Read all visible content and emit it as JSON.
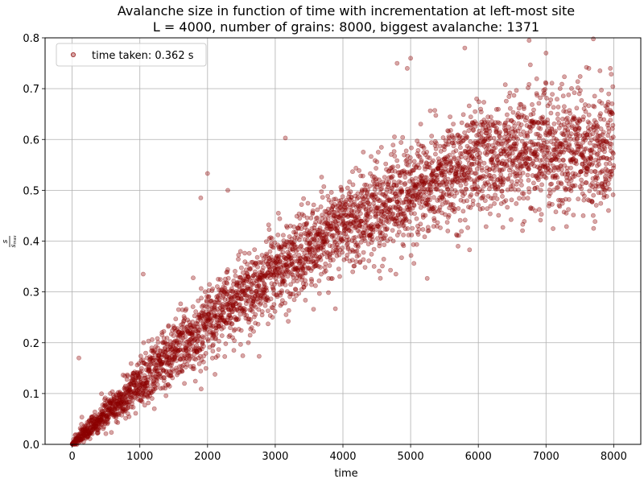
{
  "chart_data": {
    "type": "scatter",
    "title": "Avalanche size in function of time with incrementation at left-most site",
    "subtitle": "L = 4000, number of grains: 8000, biggest avalanche: 1371",
    "xlabel": "time",
    "ylabel": {
      "numerator": "s",
      "denominator": "s",
      "denominator_subscript": "max"
    },
    "xlim": [
      -400,
      8400
    ],
    "ylim": [
      0,
      0.8
    ],
    "xticks": [
      0,
      1000,
      2000,
      3000,
      4000,
      5000,
      6000,
      7000,
      8000
    ],
    "yticks": [
      0.0,
      0.1,
      0.2,
      0.3,
      0.4,
      0.5,
      0.6,
      0.7,
      0.8
    ],
    "grid": true,
    "legend_position": "top-left",
    "marker_color": "#8b0000",
    "marker_alpha": 0.35,
    "series": [
      {
        "name": "time taken: 0.362 s",
        "n_points": 8000,
        "x_range": [
          0,
          8000
        ],
        "trend": {
          "x": [
            0,
            1000,
            2000,
            3000,
            4000,
            5000,
            6000,
            7000,
            8000
          ],
          "y": [
            0.0,
            0.12,
            0.24,
            0.34,
            0.43,
            0.5,
            0.56,
            0.58,
            0.58
          ]
        },
        "spread": {
          "x": [
            0,
            1000,
            2000,
            3000,
            4000,
            5000,
            6000,
            7000,
            8000
          ],
          "y": [
            0.005,
            0.025,
            0.035,
            0.04,
            0.045,
            0.05,
            0.055,
            0.06,
            0.06
          ]
        },
        "outliers": [
          {
            "x": 100,
            "y": 0.17
          },
          {
            "x": 1050,
            "y": 0.335
          },
          {
            "x": 2000,
            "y": 0.533
          },
          {
            "x": 1900,
            "y": 0.485
          },
          {
            "x": 2300,
            "y": 0.5
          },
          {
            "x": 3150,
            "y": 0.603
          },
          {
            "x": 4800,
            "y": 0.75
          },
          {
            "x": 4950,
            "y": 0.74
          },
          {
            "x": 5000,
            "y": 0.76
          },
          {
            "x": 6750,
            "y": 0.795
          },
          {
            "x": 7000,
            "y": 0.77
          },
          {
            "x": 7700,
            "y": 0.798
          },
          {
            "x": 7950,
            "y": 0.74
          },
          {
            "x": 5800,
            "y": 0.78
          },
          {
            "x": 5550,
            "y": 0.42
          },
          {
            "x": 7300,
            "y": 0.455
          },
          {
            "x": 7550,
            "y": 0.45
          }
        ]
      }
    ]
  }
}
